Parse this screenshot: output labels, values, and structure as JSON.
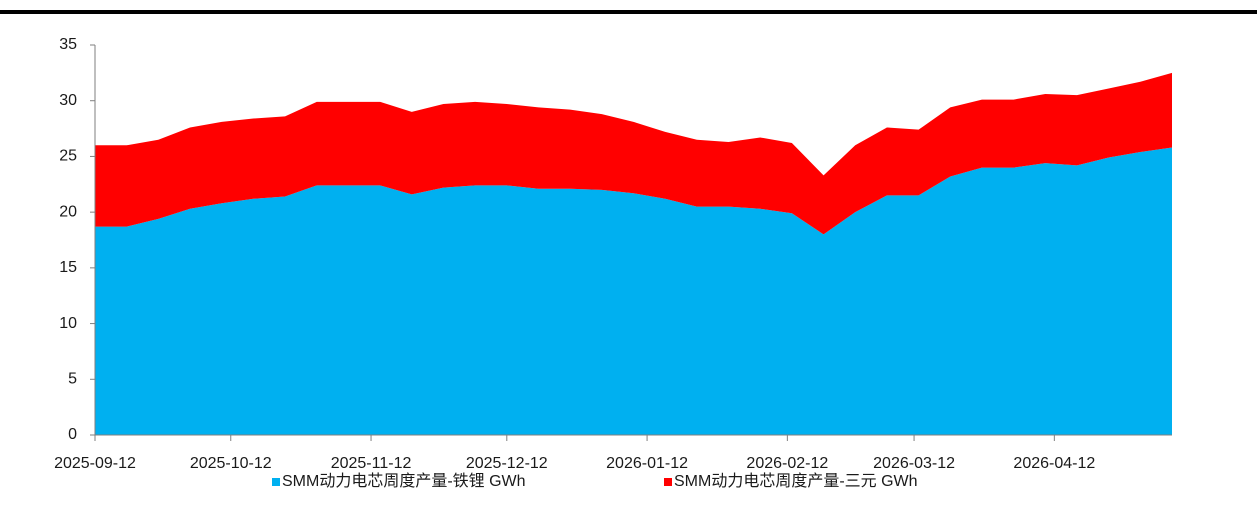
{
  "chart_data": {
    "type": "stacked_area",
    "x": [
      "2025-09-12",
      "2025-09-19",
      "2025-09-26",
      "2025-10-03",
      "2025-10-10",
      "2025-10-17",
      "2025-10-24",
      "2025-10-31",
      "2025-11-07",
      "2025-11-14",
      "2025-11-21",
      "2025-11-28",
      "2025-12-05",
      "2025-12-12",
      "2025-12-19",
      "2025-12-26",
      "2026-01-02",
      "2026-01-09",
      "2026-01-16",
      "2026-01-23",
      "2026-01-30",
      "2026-02-06",
      "2026-02-13",
      "2026-02-20",
      "2026-02-27",
      "2026-03-06",
      "2026-03-13",
      "2026-03-20",
      "2026-03-27",
      "2026-04-03",
      "2026-04-10",
      "2026-04-17",
      "2026-04-24",
      "2026-05-01",
      "2026-05-08"
    ],
    "series": [
      {
        "name": "SMM动力电芯周度产量-铁锂 GWh",
        "color": "#00b0f0",
        "values": [
          18.7,
          18.7,
          19.4,
          20.3,
          20.8,
          21.2,
          21.4,
          22.4,
          22.4,
          22.4,
          21.6,
          22.2,
          22.4,
          22.4,
          22.1,
          22.1,
          22.0,
          21.7,
          21.2,
          20.5,
          20.5,
          20.3,
          19.9,
          18.0,
          20.0,
          21.5,
          21.5,
          23.2,
          24.0,
          24.0,
          24.4,
          24.2,
          24.9,
          25.4,
          25.8
        ]
      },
      {
        "name": "SMM动力电芯周度产量-三元 GWh",
        "color": "#ff0000",
        "values": [
          7.3,
          7.3,
          7.1,
          7.3,
          7.3,
          7.2,
          7.2,
          7.5,
          7.5,
          7.5,
          7.4,
          7.5,
          7.5,
          7.3,
          7.3,
          7.1,
          6.8,
          6.4,
          6.0,
          6.0,
          5.8,
          6.4,
          6.3,
          5.3,
          6.0,
          6.1,
          5.9,
          6.2,
          6.1,
          6.1,
          6.2,
          6.3,
          6.2,
          6.3,
          6.7
        ]
      }
    ],
    "xlim": [
      "2025-09-12",
      "2026-05-08"
    ],
    "xticks": [
      "2025-09-12",
      "2025-10-12",
      "2025-11-12",
      "2025-12-12",
      "2026-01-12",
      "2026-02-12",
      "2026-03-12",
      "2026-04-12"
    ],
    "ylim": [
      0,
      35
    ],
    "yticks": [
      0,
      5,
      10,
      15,
      20,
      25,
      30,
      35
    ],
    "legend": "bottom"
  }
}
